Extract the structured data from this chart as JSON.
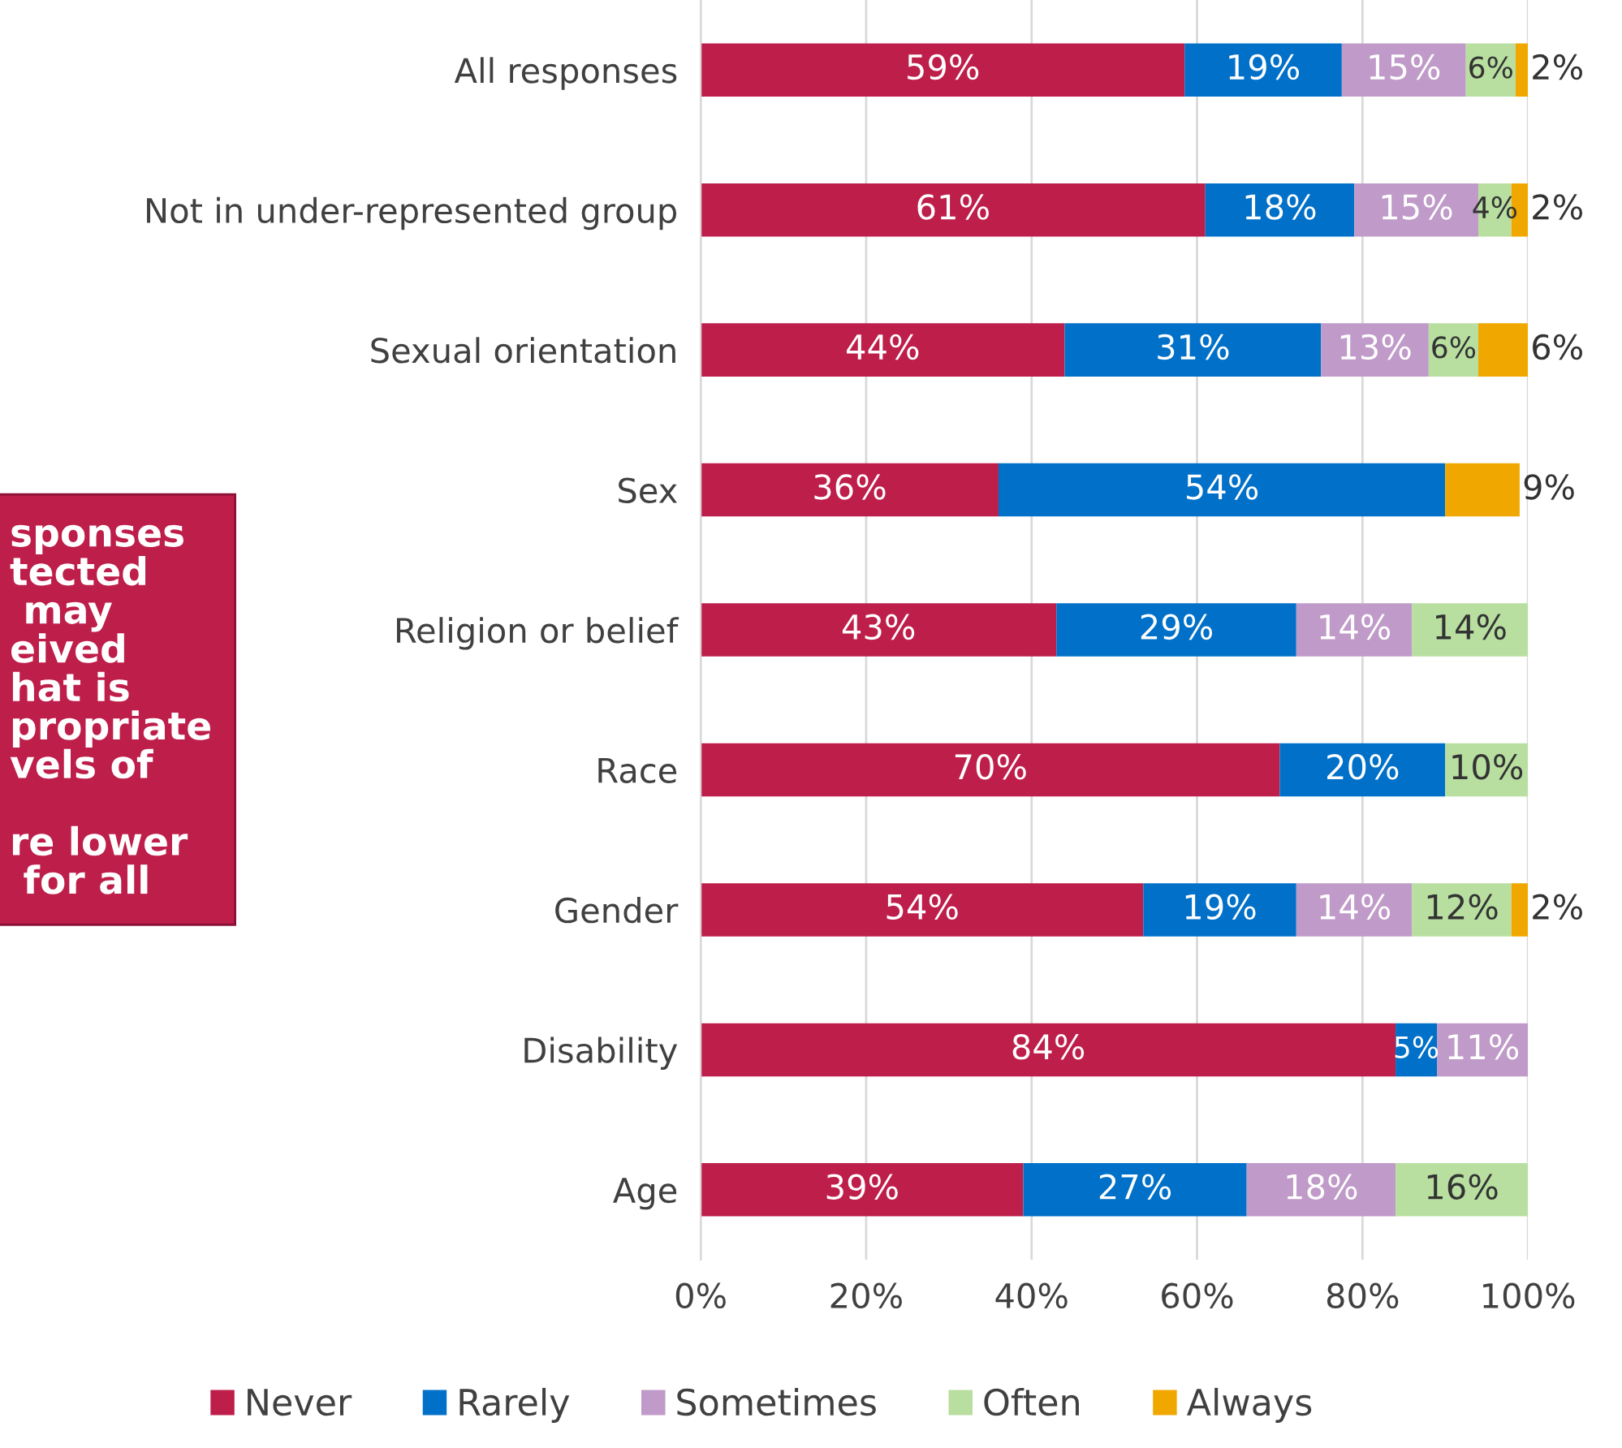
{
  "chart_data": {
    "type": "bar",
    "orientation": "horizontal",
    "stacked": true,
    "categories": [
      "All responses",
      "Not in under-represented group",
      "Sexual orientation",
      "Sex",
      "Religion or belief",
      "Race",
      "Gender",
      "Disability",
      "Age"
    ],
    "series": [
      {
        "name": "Never",
        "color": "#be1e4a",
        "values": [
          58.5,
          61,
          44,
          36,
          43,
          70,
          53.5,
          84,
          39
        ],
        "value_labels": [
          "59%",
          "61%",
          "44%",
          "36%",
          "43%",
          "70%",
          "54%",
          "84%",
          "39%"
        ]
      },
      {
        "name": "Rarely",
        "color": "#0070c8",
        "values": [
          19,
          18,
          31,
          54,
          29,
          20,
          18.5,
          5,
          27
        ],
        "value_labels": [
          "19%",
          "18%",
          "31%",
          "54%",
          "29%",
          "20%",
          "19%",
          "5%",
          "27%"
        ]
      },
      {
        "name": "Sometimes",
        "color": "#c09ac8",
        "values": [
          15,
          15,
          13,
          null,
          14,
          null,
          14,
          11,
          18
        ],
        "value_labels": [
          "15%",
          "15%",
          "13%",
          null,
          "14%",
          null,
          "14%",
          "11%",
          "18%"
        ]
      },
      {
        "name": "Often",
        "color": "#b8dfa0",
        "values": [
          6,
          4,
          6,
          null,
          14,
          10,
          12,
          null,
          16
        ],
        "value_labels": [
          "6%",
          "4%",
          "6%",
          null,
          "14%",
          "10%",
          "12%",
          null,
          "16%"
        ]
      },
      {
        "name": "Always",
        "color": "#f0a800",
        "values": [
          1.5,
          2,
          6,
          9,
          null,
          null,
          2,
          null,
          null
        ],
        "value_labels": [
          "2%",
          "2%",
          "6%",
          "9%",
          null,
          null,
          "2%",
          null,
          null
        ]
      }
    ],
    "xlim": [
      0,
      100
    ],
    "xticks": [
      {
        "value": 0,
        "label": "0%"
      },
      {
        "value": 20,
        "label": "20%"
      },
      {
        "value": 40,
        "label": "40%"
      },
      {
        "value": 60,
        "label": "60%"
      },
      {
        "value": 80,
        "label": "80%"
      },
      {
        "value": 100,
        "label": "100%"
      }
    ],
    "grid": "x",
    "legend": "bottom",
    "annotations": [
      "sponses\ntected\n may\neived\nhat is\npropriate\nvels of\n\nre lower\n for all"
    ]
  }
}
